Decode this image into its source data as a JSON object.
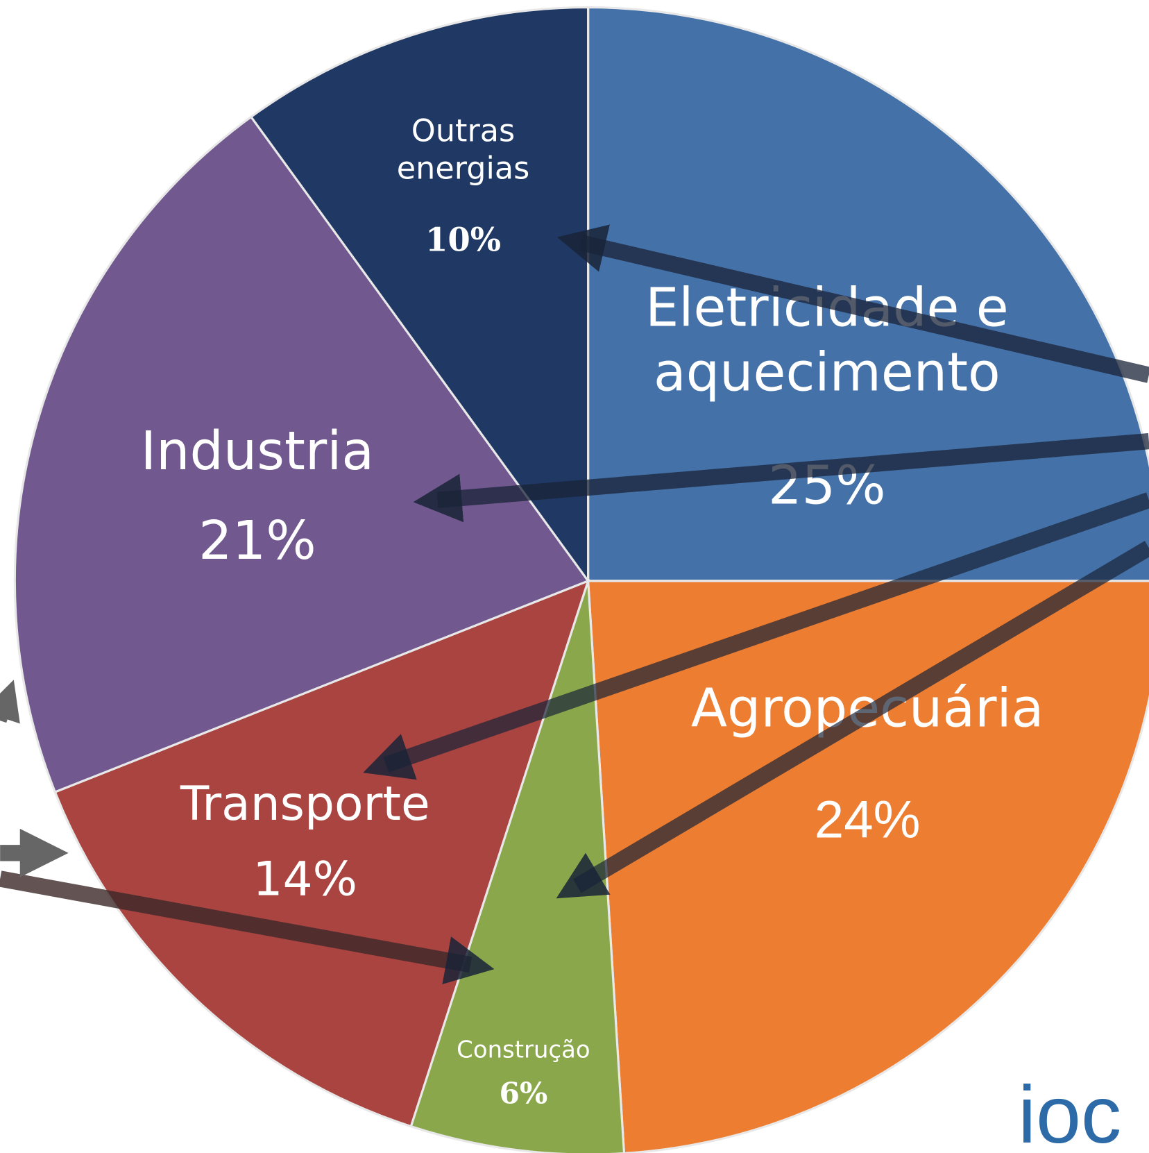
{
  "chart_data": {
    "type": "pie",
    "categories": [
      "Eletricidade e aquecimento",
      "Agropecuária",
      "Construção",
      "Transporte",
      "Industria",
      "Outras energias"
    ],
    "values": [
      25,
      24,
      6,
      14,
      21,
      10
    ],
    "value_labels": [
      "25%",
      "24%",
      "6%",
      "14%",
      "21%",
      "10%"
    ],
    "colors": [
      "#4472a8",
      "#ed7d31",
      "#8aa84b",
      "#a94440",
      "#71588f",
      "#1f3864"
    ],
    "logo": "ioc"
  }
}
